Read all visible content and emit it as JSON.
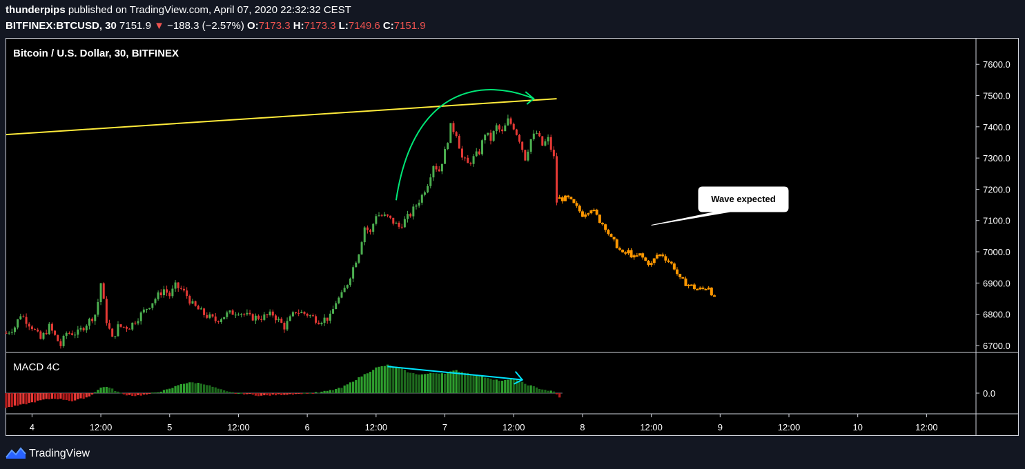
{
  "header": {
    "author": "thunderpips",
    "published_text": " published on TradingView.com, April 07, 2020 22:32:32 CEST",
    "symbol": "BITFINEX:BTCUSD, 30",
    "last": "7151.9",
    "arrow": "▼",
    "change": "−188.3 (−2.57%)",
    "o_label": "O:",
    "o_value": "7173.3",
    "h_label": "H:",
    "h_value": "7173.3",
    "l_label": "L:",
    "l_value": "7149.6",
    "c_label": "C:",
    "c_value": "7151.9"
  },
  "footer": {
    "brand": "TradingView",
    "logo_icon": "tradingview-logo-icon"
  },
  "colors": {
    "up": "#26a69a",
    "candle_up": "#4caf50",
    "candle_down": "#e53935",
    "projection": "#ff9800",
    "trendline": "#ffeb3b",
    "arc": "#00e676",
    "divergence": "#00e5ff"
  },
  "chart_data": [
    {
      "type": "candlestick",
      "title": "Bitcoin / U.S. Dollar, 30, BITFINEX",
      "ylim": [
        6680,
        7680
      ],
      "yticks": [
        "7600.0",
        "7500.0",
        "7400.0",
        "7300.0",
        "7200.0",
        "7100.0",
        "7000.0",
        "6900.0",
        "6800.0",
        "6700.0"
      ],
      "ytick_values": [
        7600,
        7500,
        7400,
        7300,
        7200,
        7100,
        7000,
        6900,
        6800,
        6700
      ],
      "xticks": [
        "4",
        "12:00",
        "5",
        "12:00",
        "6",
        "12:00",
        "7",
        "12:00",
        "8",
        "12:00",
        "9",
        "12:00",
        "10",
        "12:00"
      ],
      "xtick_hours": [
        0,
        12,
        24,
        36,
        48,
        60,
        72,
        84,
        96,
        108,
        120,
        132,
        144,
        156
      ],
      "x_start_hour": -4.5,
      "x_end_hour": 164.5,
      "price_path": [
        [
          -4.5,
          6740
        ],
        [
          -3,
          6760
        ],
        [
          -2,
          6800
        ],
        [
          0,
          6760
        ],
        [
          1.5,
          6720
        ],
        [
          3,
          6760
        ],
        [
          5,
          6700
        ],
        [
          6,
          6740
        ],
        [
          8,
          6740
        ],
        [
          10,
          6780
        ],
        [
          11,
          6800
        ],
        [
          11.5,
          6840
        ],
        [
          12,
          6900
        ],
        [
          13,
          6780
        ],
        [
          14,
          6720
        ],
        [
          15,
          6760
        ],
        [
          17,
          6760
        ],
        [
          19,
          6800
        ],
        [
          20,
          6820
        ],
        [
          21,
          6840
        ],
        [
          23,
          6880
        ],
        [
          24,
          6860
        ],
        [
          25,
          6890
        ],
        [
          26,
          6880
        ],
        [
          27,
          6860
        ],
        [
          28,
          6830
        ],
        [
          30,
          6800
        ],
        [
          32,
          6780
        ],
        [
          34,
          6800
        ],
        [
          36,
          6810
        ],
        [
          38,
          6790
        ],
        [
          40,
          6790
        ],
        [
          42,
          6800
        ],
        [
          44,
          6760
        ],
        [
          46,
          6810
        ],
        [
          48,
          6800
        ],
        [
          50,
          6780
        ],
        [
          52,
          6790
        ],
        [
          53,
          6840
        ],
        [
          54,
          6860
        ],
        [
          55,
          6900
        ],
        [
          56,
          6950
        ],
        [
          57,
          7000
        ],
        [
          58,
          7080
        ],
        [
          59,
          7060
        ],
        [
          60,
          7120
        ],
        [
          62,
          7110
        ],
        [
          64,
          7080
        ],
        [
          66,
          7120
        ],
        [
          68,
          7180
        ],
        [
          69,
          7220
        ],
        [
          70,
          7280
        ],
        [
          71,
          7260
        ],
        [
          72,
          7320
        ],
        [
          73,
          7400
        ],
        [
          74,
          7380
        ],
        [
          75,
          7300
        ],
        [
          76,
          7280
        ],
        [
          78,
          7320
        ],
        [
          79,
          7380
        ],
        [
          80,
          7360
        ],
        [
          81,
          7400
        ],
        [
          82,
          7380
        ],
        [
          83,
          7420
        ],
        [
          84,
          7400
        ],
        [
          85,
          7360
        ],
        [
          86,
          7300
        ],
        [
          87,
          7360
        ],
        [
          88,
          7380
        ],
        [
          89,
          7340
        ],
        [
          90,
          7360
        ],
        [
          91,
          7300
        ],
        [
          91.5,
          7160
        ]
      ],
      "projection_path": [
        [
          92,
          7170
        ],
        [
          93.5,
          7170
        ],
        [
          95,
          7140
        ],
        [
          96,
          7120
        ],
        [
          97.5,
          7140
        ],
        [
          99,
          7100
        ],
        [
          100,
          7080
        ],
        [
          101,
          7040
        ],
        [
          102,
          7020
        ],
        [
          103,
          6990
        ],
        [
          104,
          7000
        ],
        [
          105,
          6980
        ],
        [
          106,
          6990
        ],
        [
          107,
          6970
        ],
        [
          108,
          6960
        ],
        [
          109,
          6990
        ],
        [
          110,
          6990
        ],
        [
          111,
          6970
        ],
        [
          112,
          6950
        ],
        [
          113,
          6910
        ],
        [
          114,
          6900
        ],
        [
          115,
          6890
        ],
        [
          116,
          6880
        ],
        [
          117,
          6880
        ],
        [
          118,
          6890
        ],
        [
          119,
          6850
        ]
      ],
      "trendline": {
        "start": [
          -4.5,
          7375
        ],
        "end": [
          91.5,
          7490
        ]
      },
      "arc": {
        "start": [
          63.5,
          7165
        ],
        "peak": [
          75,
          7525
        ],
        "end": [
          87.5,
          7490
        ]
      },
      "callout": {
        "text": "Wave expected",
        "tip": [
          108,
          7085
        ]
      }
    },
    {
      "type": "histogram",
      "title": "MACD 4C",
      "yticks": [
        "0.0"
      ],
      "ytick_values": [
        0
      ],
      "ylim": [
        -30,
        60
      ],
      "histogram": [
        [
          -4.5,
          -22
        ],
        [
          -2,
          -18
        ],
        [
          0,
          -14
        ],
        [
          2,
          -10
        ],
        [
          4,
          -8
        ],
        [
          6,
          -10
        ],
        [
          7,
          -12
        ],
        [
          8,
          -10
        ],
        [
          10,
          -5
        ],
        [
          11,
          2
        ],
        [
          12,
          8
        ],
        [
          13,
          10
        ],
        [
          14,
          6
        ],
        [
          15,
          2
        ],
        [
          16,
          -2
        ],
        [
          18,
          -4
        ],
        [
          20,
          -2
        ],
        [
          22,
          2
        ],
        [
          24,
          6
        ],
        [
          26,
          14
        ],
        [
          28,
          16
        ],
        [
          30,
          14
        ],
        [
          32,
          8
        ],
        [
          34,
          2
        ],
        [
          36,
          0
        ],
        [
          38,
          -2
        ],
        [
          40,
          -4
        ],
        [
          42,
          -3
        ],
        [
          44,
          -2
        ],
        [
          46,
          -1
        ],
        [
          48,
          0
        ],
        [
          50,
          1
        ],
        [
          52,
          4
        ],
        [
          54,
          8
        ],
        [
          56,
          18
        ],
        [
          58,
          28
        ],
        [
          60,
          38
        ],
        [
          62,
          42
        ],
        [
          64,
          38
        ],
        [
          66,
          30
        ],
        [
          68,
          28
        ],
        [
          70,
          30
        ],
        [
          72,
          30
        ],
        [
          74,
          34
        ],
        [
          76,
          30
        ],
        [
          78,
          26
        ],
        [
          80,
          22
        ],
        [
          82,
          18
        ],
        [
          84,
          22
        ],
        [
          86,
          14
        ],
        [
          88,
          8
        ],
        [
          90,
          4
        ],
        [
          91,
          2
        ],
        [
          92,
          -6
        ]
      ],
      "divergence": {
        "start": [
          62,
          40
        ],
        "end": [
          85.5,
          20
        ]
      }
    }
  ]
}
